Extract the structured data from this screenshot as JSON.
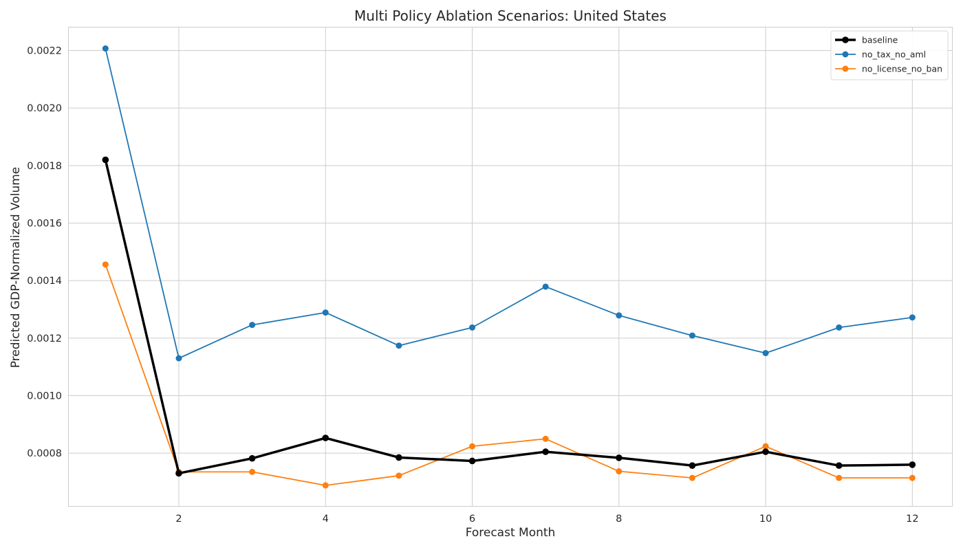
{
  "chart_data": {
    "type": "line",
    "title": "Multi Policy Ablation Scenarios: United States",
    "xlabel": "Forecast Month",
    "ylabel": "Predicted GDP-Normalized Volume",
    "x": [
      1,
      2,
      3,
      4,
      5,
      6,
      7,
      8,
      9,
      10,
      11,
      12
    ],
    "xlim": [
      0.5,
      12.55
    ],
    "ylim": [
      0.000614,
      0.00228
    ],
    "xticks": [
      2,
      4,
      6,
      8,
      10,
      12
    ],
    "xtick_labels": [
      "2",
      "4",
      "6",
      "8",
      "10",
      "12"
    ],
    "yticks": [
      0.0008,
      0.001,
      0.0012,
      0.0014,
      0.0016,
      0.0018,
      0.002,
      0.0022
    ],
    "ytick_labels": [
      "0.0008",
      "0.0010",
      "0.0012",
      "0.0014",
      "0.0016",
      "0.0018",
      "0.0020",
      "0.0022"
    ],
    "grid": true,
    "legend_position": "top-right",
    "series": [
      {
        "name": "baseline",
        "color": "#000000",
        "values": [
          0.00182,
          0.00073,
          0.000782,
          0.000853,
          0.000785,
          0.000773,
          0.000805,
          0.000784,
          0.000757,
          0.000805,
          0.000757,
          0.00076
        ]
      },
      {
        "name": "no_tax_no_aml",
        "color": "#1f77b4",
        "values": [
          0.002207,
          0.00113,
          0.001246,
          0.001289,
          0.001174,
          0.001237,
          0.001379,
          0.001279,
          0.001209,
          0.001148,
          0.001237,
          0.001272
        ]
      },
      {
        "name": "no_license_no_ban",
        "color": "#ff7f0e",
        "values": [
          0.001456,
          0.000735,
          0.000735,
          0.000688,
          0.000722,
          0.000824,
          0.00085,
          0.000737,
          0.000714,
          0.000824,
          0.000714,
          0.000714
        ]
      }
    ]
  }
}
